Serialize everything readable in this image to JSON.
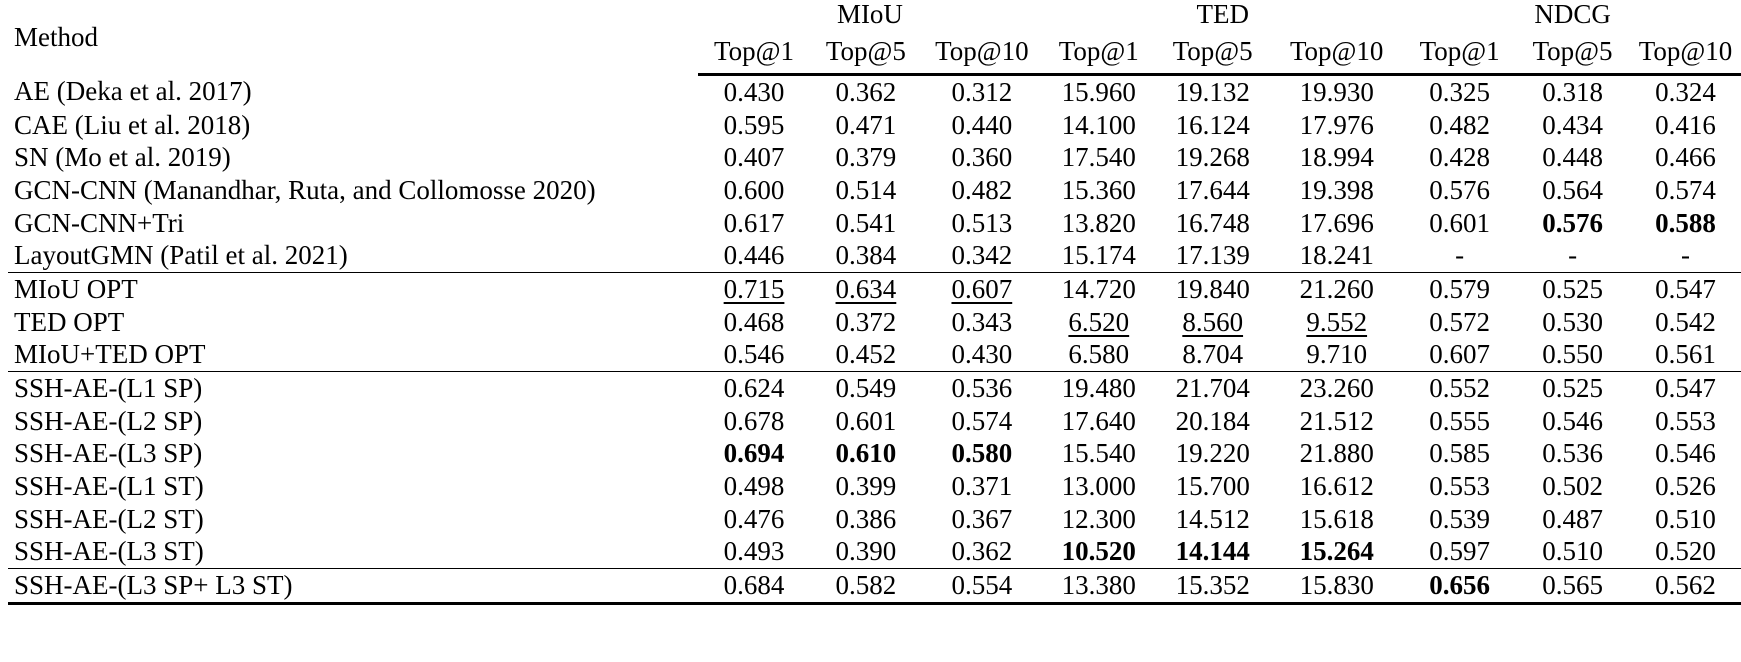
{
  "header": {
    "method_label": "Method",
    "groups": [
      "MIoU",
      "TED",
      "NDCG"
    ],
    "subheaders": [
      "Top@1",
      "Top@5",
      "Top@10",
      "Top@1",
      "Top@5",
      "Top@10",
      "Top@1",
      "Top@5",
      "Top@10"
    ]
  },
  "sections": [
    {
      "rows": [
        {
          "method": "AE (Deka et al. 2017)",
          "values": [
            "0.430",
            "0.362",
            "0.312",
            "15.960",
            "19.132",
            "19.930",
            "0.325",
            "0.318",
            "0.324"
          ]
        },
        {
          "method": "CAE (Liu et al. 2018)",
          "values": [
            "0.595",
            "0.471",
            "0.440",
            "14.100",
            "16.124",
            "17.976",
            "0.482",
            "0.434",
            "0.416"
          ]
        },
        {
          "method": "SN (Mo et al. 2019)",
          "values": [
            "0.407",
            "0.379",
            "0.360",
            "17.540",
            "19.268",
            "18.994",
            "0.428",
            "0.448",
            "0.466"
          ]
        },
        {
          "method": "GCN-CNN (Manandhar, Ruta, and Collomosse 2020)",
          "values": [
            "0.600",
            "0.514",
            "0.482",
            "15.360",
            "17.644",
            "19.398",
            "0.576",
            "0.564",
            "0.574"
          ]
        },
        {
          "method": "GCN-CNN+Tri",
          "values": [
            "0.617",
            "0.541",
            "0.513",
            "13.820",
            "16.748",
            "17.696",
            "0.601",
            "0.576",
            "0.588"
          ],
          "bold": [
            7,
            8
          ]
        },
        {
          "method": "LayoutGMN (Patil et al. 2021)",
          "values": [
            "0.446",
            "0.384",
            "0.342",
            "15.174",
            "17.139",
            "18.241",
            "-",
            "-",
            "-"
          ]
        }
      ]
    },
    {
      "rows": [
        {
          "method": "MIoU OPT",
          "values": [
            "0.715",
            "0.634",
            "0.607",
            "14.720",
            "19.840",
            "21.260",
            "0.579",
            "0.525",
            "0.547"
          ],
          "underline": [
            0,
            1,
            2
          ]
        },
        {
          "method": "TED OPT",
          "values": [
            "0.468",
            "0.372",
            "0.343",
            "6.520",
            "8.560",
            "9.552",
            "0.572",
            "0.530",
            "0.542"
          ],
          "underline": [
            3,
            4,
            5
          ]
        },
        {
          "method": "MIoU+TED OPT",
          "values": [
            "0.546",
            "0.452",
            "0.430",
            "6.580",
            "8.704",
            "9.710",
            "0.607",
            "0.550",
            "0.561"
          ]
        }
      ]
    },
    {
      "rows": [
        {
          "method": "SSH-AE-(L1 SP)",
          "values": [
            "0.624",
            "0.549",
            "0.536",
            "19.480",
            "21.704",
            "23.260",
            "0.552",
            "0.525",
            "0.547"
          ]
        },
        {
          "method": "SSH-AE-(L2 SP)",
          "values": [
            "0.678",
            "0.601",
            "0.574",
            "17.640",
            "20.184",
            "21.512",
            "0.555",
            "0.546",
            "0.553"
          ]
        },
        {
          "method": "SSH-AE-(L3 SP)",
          "values": [
            "0.694",
            "0.610",
            "0.580",
            "15.540",
            "19.220",
            "21.880",
            "0.585",
            "0.536",
            "0.546"
          ],
          "bold": [
            0,
            1,
            2
          ]
        },
        {
          "method": "SSH-AE-(L1 ST)",
          "values": [
            "0.498",
            "0.399",
            "0.371",
            "13.000",
            "15.700",
            "16.612",
            "0.553",
            "0.502",
            "0.526"
          ]
        },
        {
          "method": "SSH-AE-(L2 ST)",
          "values": [
            "0.476",
            "0.386",
            "0.367",
            "12.300",
            "14.512",
            "15.618",
            "0.539",
            "0.487",
            "0.510"
          ]
        },
        {
          "method": "SSH-AE-(L3 ST)",
          "values": [
            "0.493",
            "0.390",
            "0.362",
            "10.520",
            "14.144",
            "15.264",
            "0.597",
            "0.510",
            "0.520"
          ],
          "bold": [
            3,
            4,
            5
          ]
        }
      ]
    },
    {
      "rows": [
        {
          "method": "SSH-AE-(L3 SP+ L3 ST)",
          "values": [
            "0.684",
            "0.582",
            "0.554",
            "13.380",
            "15.352",
            "15.830",
            "0.656",
            "0.565",
            "0.562"
          ],
          "bold": [
            6
          ]
        }
      ]
    }
  ]
}
